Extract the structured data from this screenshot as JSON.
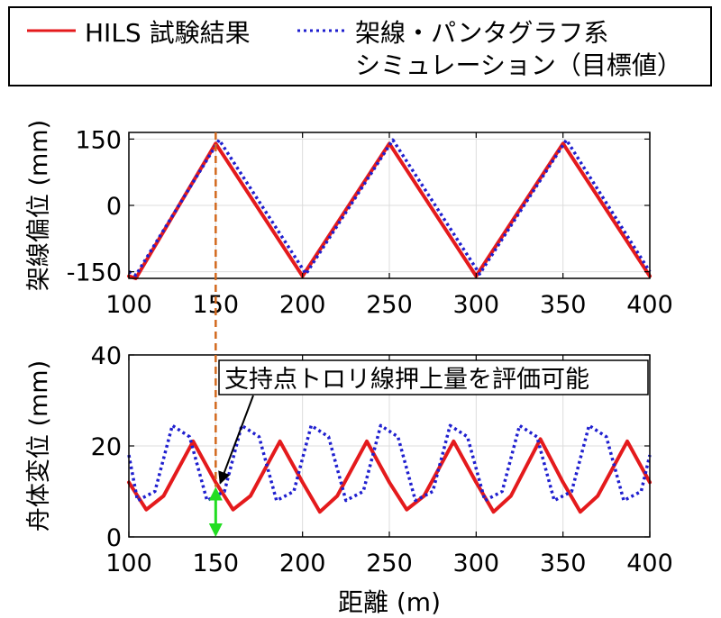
{
  "legend": {
    "entries": [
      {
        "label": "HILS 試験結果",
        "color": "#e41a1c",
        "style": "solid"
      },
      {
        "label_line1": "架線・パンタグラフ系",
        "label_line2": "シミュレーション（目標値）",
        "color": "#1f1fcf",
        "style": "dotted"
      }
    ]
  },
  "chart_data": [
    {
      "type": "line",
      "ylabel": "架線偏位 (mm)",
      "xlim": [
        100,
        400
      ],
      "ylim": [
        -165,
        165
      ],
      "xticks": [
        100,
        150,
        200,
        250,
        300,
        350,
        400
      ],
      "yticks": [
        -150,
        0,
        150
      ],
      "grid": true,
      "series": [
        {
          "name": "HILS 試験結果",
          "color": "#e41a1c",
          "style": "solid",
          "x": [
            100,
            104,
            150,
            200,
            250,
            300,
            350,
            400
          ],
          "y": [
            -160,
            -165,
            140,
            -160,
            140,
            -160,
            140,
            -160
          ]
        },
        {
          "name": "架線・パンタグラフ系 シミュレーション（目標値）",
          "color": "#1f1fcf",
          "style": "dotted",
          "x": [
            100,
            104,
            152,
            202,
            252,
            302,
            352,
            400
          ],
          "y": [
            -150,
            -158,
            148,
            -155,
            148,
            -155,
            148,
            -150
          ]
        }
      ]
    },
    {
      "type": "line",
      "ylabel": "舟体変位 (mm)",
      "xlabel": "距離 (m)",
      "xlim": [
        100,
        400
      ],
      "ylim": [
        0,
        40
      ],
      "xticks": [
        100,
        150,
        200,
        250,
        300,
        350,
        400
      ],
      "yticks": [
        0,
        20,
        40
      ],
      "grid": true,
      "series": [
        {
          "name": "HILS 試験結果",
          "color": "#e41a1c",
          "style": "solid",
          "x": [
            100,
            110,
            120,
            137,
            150,
            160,
            170,
            187,
            200,
            210,
            220,
            237,
            250,
            260,
            270,
            287,
            300,
            310,
            320,
            337,
            350,
            360,
            370,
            387,
            400
          ],
          "y": [
            12,
            6,
            9,
            21,
            12,
            6,
            9,
            21,
            12,
            5.5,
            9,
            21,
            12,
            6,
            9,
            21,
            12,
            5.5,
            9,
            21.5,
            12,
            5.5,
            9,
            21,
            12
          ]
        },
        {
          "name": "架線・パンタグラフ系 シミュレーション（目標値）",
          "color": "#1f1fcf",
          "style": "dotted",
          "x": [
            100,
            105,
            115,
            125,
            135,
            145,
            155,
            165,
            175,
            185,
            195,
            205,
            215,
            225,
            235,
            245,
            255,
            265,
            275,
            285,
            295,
            305,
            315,
            325,
            335,
            345,
            355,
            365,
            375,
            385,
            395,
            400
          ],
          "y": [
            18,
            8,
            10,
            24.5,
            22,
            8,
            10,
            24.5,
            22,
            8,
            10,
            24.5,
            22,
            8,
            10,
            24.5,
            22,
            8,
            10,
            24.5,
            22,
            8,
            10,
            24.5,
            22,
            8,
            10,
            24.5,
            22,
            8,
            10,
            18
          ]
        }
      ],
      "annotation": {
        "text": "支持点トロリ線押上量を評価可能",
        "x": 150,
        "y": 11
      },
      "marker_arrow": {
        "x": 150,
        "y_from": 0,
        "y_to": 11,
        "color": "#22dd22"
      }
    }
  ],
  "reference_line": {
    "x": 150,
    "color": "#d2691e",
    "style": "dashed"
  }
}
